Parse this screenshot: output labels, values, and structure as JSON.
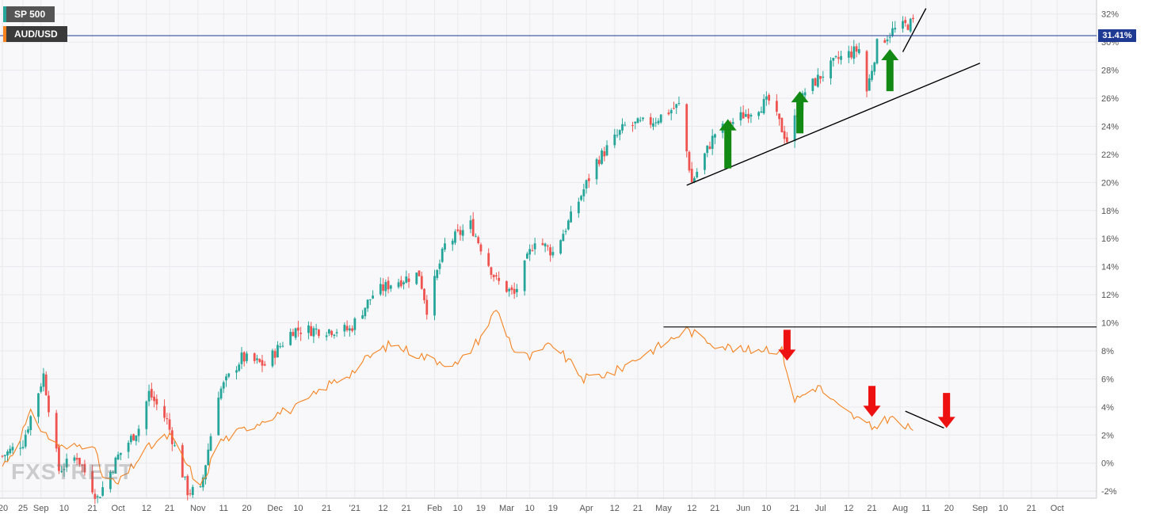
{
  "legend": [
    {
      "label": "SP 500",
      "swatch_color": "#26a69a"
    },
    {
      "label": "AUD/USD",
      "swatch_color": "#f5821f"
    }
  ],
  "watermark": "FXSTREET",
  "price_tag": {
    "label": "31.41%",
    "color": "#1f3a93"
  },
  "colors": {
    "up": "#26a69a",
    "down": "#ef5350",
    "audusd": "#f5821f",
    "grid": "#e9e9ee",
    "bg": "#f8f8fa",
    "trendline": "#000000",
    "green_arrow": "#138a13",
    "red_arrow": "#ee1111"
  },
  "chart_data": {
    "type": "line",
    "title": "",
    "y_axis": {
      "unit": "%",
      "ylim": [
        -2.5,
        33
      ],
      "tick_labels": [
        "32%",
        "30%",
        "28%",
        "26%",
        "24%",
        "22%",
        "20%",
        "18%",
        "16%",
        "14%",
        "12%",
        "10%",
        "8%",
        "6%",
        "4%",
        "2%",
        "0%",
        "-2%"
      ],
      "tick_values": [
        32,
        30,
        28,
        26,
        24,
        22,
        20,
        18,
        16,
        14,
        12,
        10,
        8,
        6,
        4,
        2,
        0,
        -2
      ]
    },
    "x_axis": {
      "range": [
        "2020-08-17",
        "2021-10-12"
      ],
      "tick_labels": [
        "'20",
        "25",
        "Sep",
        "10",
        "21",
        "Oct",
        "12",
        "21",
        "Nov",
        "11",
        "20",
        "Dec",
        "10",
        "21",
        "'21",
        "12",
        "21",
        "Feb",
        "10",
        "19",
        "Mar",
        "10",
        "19",
        "Apr",
        "12",
        "21",
        "May",
        "12",
        "21",
        "Jun",
        "10",
        "21",
        "Jul",
        "12",
        "21",
        "Aug",
        "11",
        "20",
        "Sep",
        "10",
        "21",
        "Oct"
      ],
      "tick_dates": [
        "2020-08-17",
        "2020-08-25",
        "2020-09-01",
        "2020-09-10",
        "2020-09-21",
        "2020-10-01",
        "2020-10-12",
        "2020-10-21",
        "2020-11-01",
        "2020-11-11",
        "2020-11-20",
        "2020-12-01",
        "2020-12-10",
        "2020-12-21",
        "2021-01-01",
        "2021-01-12",
        "2021-01-21",
        "2021-02-01",
        "2021-02-10",
        "2021-02-19",
        "2021-03-01",
        "2021-03-10",
        "2021-03-19",
        "2021-04-01",
        "2021-04-12",
        "2021-04-21",
        "2021-05-01",
        "2021-05-12",
        "2021-05-21",
        "2021-06-01",
        "2021-06-10",
        "2021-06-21",
        "2021-07-01",
        "2021-07-12",
        "2021-07-21",
        "2021-08-01",
        "2021-08-11",
        "2021-08-20",
        "2021-09-01",
        "2021-09-10",
        "2021-09-21",
        "2021-10-01"
      ]
    },
    "grid": true,
    "series": [
      {
        "name": "SP 500",
        "kind": "candlestick",
        "points": [
          [
            "2020-08-17",
            0.5
          ],
          [
            "2020-08-25",
            1.5
          ],
          [
            "2020-09-02",
            6.3
          ],
          [
            "2020-09-08",
            -0.5
          ],
          [
            "2020-09-15",
            0.5
          ],
          [
            "2020-09-23",
            -2.5
          ],
          [
            "2020-10-01",
            0.5
          ],
          [
            "2020-10-09",
            2.5
          ],
          [
            "2020-10-13",
            5.0
          ],
          [
            "2020-10-20",
            3.0
          ],
          [
            "2020-10-28",
            -2.0
          ],
          [
            "2020-11-02",
            -2.0
          ],
          [
            "2020-11-09",
            5.0
          ],
          [
            "2020-11-18",
            7.5
          ],
          [
            "2020-11-27",
            7.0
          ],
          [
            "2020-12-08",
            9.5
          ],
          [
            "2020-12-18",
            9.5
          ],
          [
            "2020-12-30",
            9.5
          ],
          [
            "2021-01-08",
            12.0
          ],
          [
            "2021-01-15",
            12.8
          ],
          [
            "2021-01-26",
            13.5
          ],
          [
            "2021-01-29",
            11.0
          ],
          [
            "2021-02-05",
            15.5
          ],
          [
            "2021-02-15",
            17.0
          ],
          [
            "2021-02-25",
            13.0
          ],
          [
            "2021-03-04",
            12.0
          ],
          [
            "2021-03-12",
            16.0
          ],
          [
            "2021-03-19",
            15.0
          ],
          [
            "2021-03-26",
            17.5
          ],
          [
            "2021-04-05",
            21.5
          ],
          [
            "2021-04-16",
            24.0
          ],
          [
            "2021-04-26",
            24.3
          ],
          [
            "2021-05-07",
            25.5
          ],
          [
            "2021-05-12",
            20.0
          ],
          [
            "2021-05-21",
            23.5
          ],
          [
            "2021-06-01",
            24.8
          ],
          [
            "2021-06-11",
            25.8
          ],
          [
            "2021-06-18",
            23.0
          ],
          [
            "2021-06-25",
            26.5
          ],
          [
            "2021-07-08",
            28.8
          ],
          [
            "2021-07-16",
            29.5
          ],
          [
            "2021-07-19",
            26.5
          ],
          [
            "2021-07-23",
            29.8
          ],
          [
            "2021-07-29",
            30.8
          ],
          [
            "2021-08-06",
            31.4
          ]
        ]
      },
      {
        "name": "AUD/USD",
        "kind": "line",
        "points": [
          [
            "2020-08-17",
            -0.2
          ],
          [
            "2020-08-21",
            0.8
          ],
          [
            "2020-08-28",
            3.5
          ],
          [
            "2020-09-03",
            2.0
          ],
          [
            "2020-09-10",
            1.0
          ],
          [
            "2020-09-21",
            1.5
          ],
          [
            "2020-09-25",
            -1.0
          ],
          [
            "2020-10-01",
            -1.5
          ],
          [
            "2020-10-12",
            1.0
          ],
          [
            "2020-10-21",
            2.0
          ],
          [
            "2020-10-29",
            -0.5
          ],
          [
            "2020-11-02",
            -1.8
          ],
          [
            "2020-11-09",
            1.5
          ],
          [
            "2020-11-20",
            2.5
          ],
          [
            "2020-12-01",
            3.5
          ],
          [
            "2020-12-10",
            4.0
          ],
          [
            "2020-12-21",
            5.5
          ],
          [
            "2020-12-31",
            6.5
          ],
          [
            "2021-01-06",
            7.5
          ],
          [
            "2021-01-15",
            8.5
          ],
          [
            "2021-01-29",
            7.5
          ],
          [
            "2021-02-10",
            7.0
          ],
          [
            "2021-02-19",
            9.0
          ],
          [
            "2021-02-25",
            11.0
          ],
          [
            "2021-03-04",
            8.0
          ],
          [
            "2021-03-10",
            7.5
          ],
          [
            "2021-03-19",
            8.5
          ],
          [
            "2021-03-31",
            6.0
          ],
          [
            "2021-04-12",
            6.5
          ],
          [
            "2021-04-21",
            7.5
          ],
          [
            "2021-05-01",
            8.5
          ],
          [
            "2021-05-10",
            9.5
          ],
          [
            "2021-05-21",
            8.5
          ],
          [
            "2021-06-01",
            8.0
          ],
          [
            "2021-06-10",
            8.2
          ],
          [
            "2021-06-16",
            8.0
          ],
          [
            "2021-06-21",
            4.5
          ],
          [
            "2021-06-30",
            5.5
          ],
          [
            "2021-07-08",
            4.0
          ],
          [
            "2021-07-21",
            2.5
          ],
          [
            "2021-07-28",
            3.3
          ],
          [
            "2021-08-03",
            2.5
          ],
          [
            "2021-08-06",
            2.5
          ]
        ]
      }
    ],
    "annotations": {
      "horizontal_line": 9.7,
      "trendlines": [
        {
          "from": [
            "2021-05-10",
            19.8
          ],
          "to": [
            "2021-09-01",
            28.5
          ]
        },
        {
          "from": [
            "2021-08-02",
            29.3
          ],
          "to": [
            "2021-08-11",
            32.4
          ]
        },
        {
          "from": [
            "2021-08-03",
            3.7
          ],
          "to": [
            "2021-08-18",
            2.5
          ]
        }
      ],
      "up_arrows": [
        [
          "2021-05-26",
          21.0,
          24.5
        ],
        [
          "2021-06-23",
          23.5,
          26.5
        ],
        [
          "2021-07-28",
          26.5,
          29.5
        ]
      ],
      "down_arrows": [
        [
          "2021-06-18",
          9.5,
          7.3
        ],
        [
          "2021-07-21",
          5.5,
          3.3
        ],
        [
          "2021-08-19",
          5.0,
          2.5
        ]
      ]
    }
  }
}
